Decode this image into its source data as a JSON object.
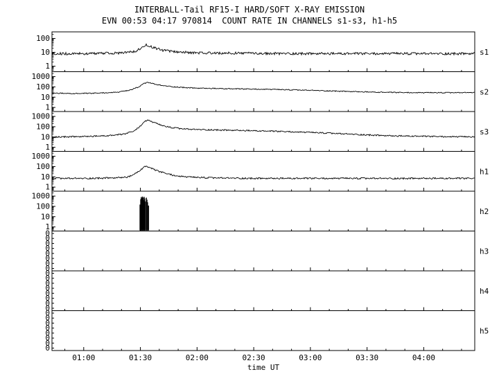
{
  "chart_data": {
    "type": "line",
    "title": "INTERBALL-Tail RF15-I HARD/SOFT X-RAY EMISSION",
    "subtitle": "EVN 00:53 04:17 970814  COUNT RATE IN CHANNELS s1-s3, h1-h5",
    "xlabel": "time UT",
    "x_range": [
      0.72,
      4.45
    ],
    "x_ticks": [
      {
        "v": 1.0,
        "label": "01:00"
      },
      {
        "v": 1.5,
        "label": "01:30"
      },
      {
        "v": 2.0,
        "label": "02:00"
      },
      {
        "v": 2.5,
        "label": "02:30"
      },
      {
        "v": 3.0,
        "label": "03:00"
      },
      {
        "v": 3.5,
        "label": "03:30"
      },
      {
        "v": 4.0,
        "label": "04:00"
      }
    ],
    "background": "#ffffff",
    "line_color": "#000000",
    "grid": false,
    "legend": "channel labels on right side",
    "panels": [
      {
        "id": "s1",
        "label": "s1",
        "scale": "log",
        "ylim": [
          0.4,
          300
        ],
        "yticks": [
          {
            "v": 100,
            "label": "100"
          },
          {
            "v": 10,
            "label": "10"
          },
          {
            "v": 1,
            "label": "1"
          }
        ],
        "noise": 0.09,
        "render": "noisy-line",
        "points": [
          [
            0.72,
            8
          ],
          [
            1.0,
            8
          ],
          [
            1.2,
            8.5
          ],
          [
            1.35,
            9
          ],
          [
            1.45,
            12
          ],
          [
            1.5,
            18
          ],
          [
            1.53,
            30
          ],
          [
            1.56,
            35
          ],
          [
            1.6,
            25
          ],
          [
            1.65,
            18
          ],
          [
            1.7,
            14
          ],
          [
            1.8,
            11
          ],
          [
            1.9,
            10
          ],
          [
            2.0,
            9
          ],
          [
            2.5,
            8.5
          ],
          [
            3.0,
            8
          ],
          [
            3.5,
            8
          ],
          [
            4.0,
            8
          ],
          [
            4.45,
            8
          ]
        ]
      },
      {
        "id": "s2",
        "label": "s2",
        "scale": "log",
        "ylim": [
          0.4,
          3000
        ],
        "yticks": [
          {
            "v": 1000,
            "label": "1000"
          },
          {
            "v": 100,
            "label": "100"
          },
          {
            "v": 10,
            "label": "10"
          },
          {
            "v": 1,
            "label": "1"
          }
        ],
        "noise": 0.05,
        "render": "noisy-line",
        "points": [
          [
            0.72,
            25
          ],
          [
            0.9,
            22
          ],
          [
            1.1,
            24
          ],
          [
            1.3,
            30
          ],
          [
            1.4,
            45
          ],
          [
            1.45,
            70
          ],
          [
            1.5,
            120
          ],
          [
            1.53,
            200
          ],
          [
            1.56,
            280
          ],
          [
            1.6,
            220
          ],
          [
            1.65,
            160
          ],
          [
            1.7,
            130
          ],
          [
            1.8,
            100
          ],
          [
            1.9,
            85
          ],
          [
            2.0,
            75
          ],
          [
            2.2,
            68
          ],
          [
            2.4,
            62
          ],
          [
            2.6,
            58
          ],
          [
            2.8,
            52
          ],
          [
            3.0,
            46
          ],
          [
            3.2,
            40
          ],
          [
            3.4,
            34
          ],
          [
            3.6,
            30
          ],
          [
            3.8,
            28
          ],
          [
            4.0,
            27
          ],
          [
            4.2,
            27
          ],
          [
            4.45,
            28
          ]
        ]
      },
      {
        "id": "s3",
        "label": "s3",
        "scale": "log",
        "ylim": [
          0.4,
          3000
        ],
        "yticks": [
          {
            "v": 1000,
            "label": "1000"
          },
          {
            "v": 100,
            "label": "100"
          },
          {
            "v": 10,
            "label": "10"
          },
          {
            "v": 1,
            "label": "1"
          }
        ],
        "noise": 0.07,
        "render": "noisy-line",
        "points": [
          [
            0.72,
            10
          ],
          [
            1.0,
            11
          ],
          [
            1.2,
            13
          ],
          [
            1.35,
            18
          ],
          [
            1.45,
            40
          ],
          [
            1.5,
            120
          ],
          [
            1.54,
            350
          ],
          [
            1.57,
            420
          ],
          [
            1.62,
            250
          ],
          [
            1.68,
            140
          ],
          [
            1.75,
            90
          ],
          [
            1.85,
            65
          ],
          [
            1.95,
            55
          ],
          [
            2.1,
            50
          ],
          [
            2.3,
            45
          ],
          [
            2.5,
            40
          ],
          [
            2.7,
            35
          ],
          [
            2.9,
            30
          ],
          [
            3.1,
            25
          ],
          [
            3.3,
            20
          ],
          [
            3.5,
            16
          ],
          [
            3.7,
            13
          ],
          [
            3.9,
            12
          ],
          [
            4.1,
            11
          ],
          [
            4.45,
            10
          ]
        ]
      },
      {
        "id": "h1",
        "label": "h1",
        "scale": "log",
        "ylim": [
          0.4,
          3000
        ],
        "yticks": [
          {
            "v": 1000,
            "label": "1000"
          },
          {
            "v": 100,
            "label": "100"
          },
          {
            "v": 10,
            "label": "10"
          },
          {
            "v": 1,
            "label": "1"
          }
        ],
        "noise": 0.08,
        "render": "noisy-line",
        "points": [
          [
            0.72,
            7
          ],
          [
            1.0,
            7
          ],
          [
            1.3,
            8
          ],
          [
            1.4,
            10
          ],
          [
            1.47,
            25
          ],
          [
            1.52,
            70
          ],
          [
            1.55,
            110
          ],
          [
            1.58,
            80
          ],
          [
            1.63,
            45
          ],
          [
            1.7,
            25
          ],
          [
            1.78,
            15
          ],
          [
            1.85,
            11
          ],
          [
            1.95,
            9
          ],
          [
            2.1,
            8
          ],
          [
            2.5,
            7
          ],
          [
            3.0,
            7
          ],
          [
            3.5,
            7
          ],
          [
            4.0,
            7
          ],
          [
            4.45,
            7
          ]
        ]
      },
      {
        "id": "h2",
        "label": "h2",
        "scale": "log",
        "ylim": [
          0.4,
          3000
        ],
        "yticks": [
          {
            "v": 1000,
            "label": "1000"
          },
          {
            "v": 100,
            "label": "100"
          },
          {
            "v": 10,
            "label": "10"
          },
          {
            "v": 1,
            "label": "1"
          }
        ],
        "noise": 0,
        "render": "spikes",
        "points": [
          [
            1.497,
            150
          ],
          [
            1.503,
            500
          ],
          [
            1.508,
            800
          ],
          [
            1.513,
            600
          ],
          [
            1.518,
            900
          ],
          [
            1.523,
            700
          ],
          [
            1.528,
            400
          ],
          [
            1.533,
            850
          ],
          [
            1.538,
            600
          ],
          [
            1.543,
            300
          ],
          [
            1.553,
            700
          ],
          [
            1.558,
            450
          ],
          [
            1.563,
            250
          ],
          [
            1.572,
            120
          ]
        ]
      },
      {
        "id": "h3",
        "label": "h3",
        "scale": "zero",
        "render": "none",
        "zero_labels": [
          "0",
          "0",
          "0",
          "0",
          "0",
          "0",
          "0",
          "0"
        ],
        "points": []
      },
      {
        "id": "h4",
        "label": "h4",
        "scale": "zero",
        "render": "none",
        "zero_labels": [
          "0",
          "0",
          "0",
          "0",
          "0",
          "0",
          "0",
          "0"
        ],
        "points": []
      },
      {
        "id": "h5",
        "label": "h5",
        "scale": "zero",
        "render": "none",
        "zero_labels": [
          "0",
          "0",
          "0",
          "0",
          "0",
          "0",
          "0",
          "0"
        ],
        "points": []
      }
    ]
  }
}
